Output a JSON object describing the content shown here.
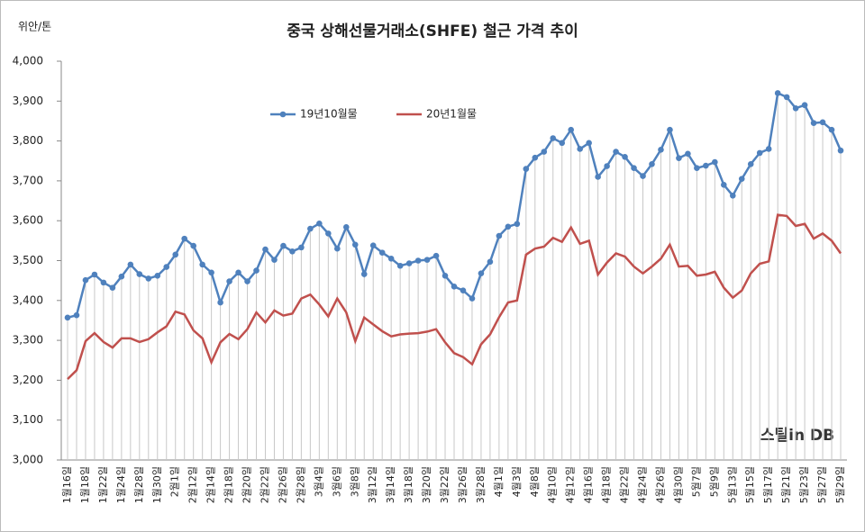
{
  "chart_data": {
    "type": "line",
    "title": "중국 상해선물거래소(SHFE) 철근 가격 추이",
    "y_label": "위안/톤",
    "watermark": "스틸in DB",
    "categories": [
      "1월16일",
      null,
      "1월18일",
      null,
      "1월22일",
      null,
      "1월24일",
      null,
      "1월28일",
      null,
      "1월30일",
      null,
      "2월1일",
      null,
      "2월12일",
      null,
      "2월14일",
      null,
      "2월18일",
      null,
      "2월20일",
      null,
      "2월22일",
      null,
      "2월26일",
      null,
      "2월28일",
      null,
      "3월4일",
      null,
      "3월6일",
      null,
      "3월8일",
      null,
      "3월12일",
      null,
      "3월14일",
      null,
      "3월18일",
      null,
      "3월20일",
      null,
      "3월22일",
      null,
      "3월26일",
      null,
      "3월28일",
      null,
      "4월1일",
      null,
      "4월3일",
      null,
      "4월8일",
      null,
      "4월10일",
      null,
      "4월12일",
      null,
      "4월16일",
      null,
      "4월18일",
      null,
      "4월22일",
      null,
      "4월24일",
      null,
      "4월26일",
      null,
      "4월30일",
      null,
      "5월7일",
      null,
      "5월9일",
      null,
      "5월13일",
      null,
      "5월15일",
      null,
      "5월17일",
      null,
      "5월21일",
      null,
      "5월23일",
      null,
      "5월27일",
      null,
      "5월29일"
    ],
    "series": [
      {
        "name": "19년10월물",
        "color": "#4f81bd",
        "marker": true,
        "drop_lines": true,
        "values": [
          3357,
          3363,
          3451,
          3465,
          3445,
          3432,
          3460,
          3490,
          3466,
          3455,
          3462,
          3484,
          3515,
          3555,
          3537,
          3490,
          3470,
          3395,
          3448,
          3470,
          3448,
          3475,
          3528,
          3502,
          3537,
          3523,
          3533,
          3580,
          3593,
          3568,
          3530,
          3584,
          3540,
          3466,
          3538,
          3520,
          3505,
          3487,
          3493,
          3500,
          3502,
          3512,
          3462,
          3435,
          3425,
          3405,
          3468,
          3497,
          3562,
          3585,
          3592,
          3730,
          3758,
          3773,
          3807,
          3795,
          3828,
          3780,
          3795,
          3710,
          3737,
          3773,
          3760,
          3732,
          3712,
          3742,
          3778,
          3828,
          3757,
          3768,
          3732,
          3738,
          3747,
          3690,
          3663,
          3705,
          3742,
          3770,
          3780,
          3920,
          3910,
          3882,
          3890,
          3845,
          3847,
          3828,
          3776
        ]
      },
      {
        "name": "20년1월물",
        "color": "#c0504d",
        "marker": false,
        "values": [
          3203,
          3225,
          3298,
          3318,
          3296,
          3282,
          3305,
          3305,
          3296,
          3303,
          3320,
          3335,
          3372,
          3365,
          3325,
          3305,
          3245,
          3295,
          3316,
          3303,
          3328,
          3370,
          3345,
          3375,
          3362,
          3367,
          3405,
          3415,
          3390,
          3360,
          3405,
          3370,
          3298,
          3357,
          3340,
          3323,
          3310,
          3315,
          3317,
          3318,
          3322,
          3328,
          3295,
          3268,
          3258,
          3240,
          3290,
          3315,
          3358,
          3395,
          3400,
          3515,
          3530,
          3535,
          3557,
          3547,
          3583,
          3542,
          3550,
          3465,
          3495,
          3518,
          3510,
          3485,
          3468,
          3485,
          3505,
          3540,
          3485,
          3487,
          3462,
          3465,
          3472,
          3432,
          3407,
          3425,
          3468,
          3492,
          3498,
          3615,
          3612,
          3587,
          3592,
          3555,
          3568,
          3550,
          3518
        ]
      }
    ],
    "ylim": [
      3000,
      4000
    ],
    "yticks": [
      {
        "value": 3000,
        "label": "3,000"
      },
      {
        "value": 3100,
        "label": "3,100"
      },
      {
        "value": 3200,
        "label": "3,200"
      },
      {
        "value": 3300,
        "label": "3,300"
      },
      {
        "value": 3400,
        "label": "3,400"
      },
      {
        "value": 3500,
        "label": "3,500"
      },
      {
        "value": 3600,
        "label": "3,600"
      },
      {
        "value": 3700,
        "label": "3,700"
      },
      {
        "value": 3800,
        "label": "3,800"
      },
      {
        "value": 3900,
        "label": "3,900"
      },
      {
        "value": 4000,
        "label": "4,000"
      }
    ],
    "legend": "top"
  }
}
